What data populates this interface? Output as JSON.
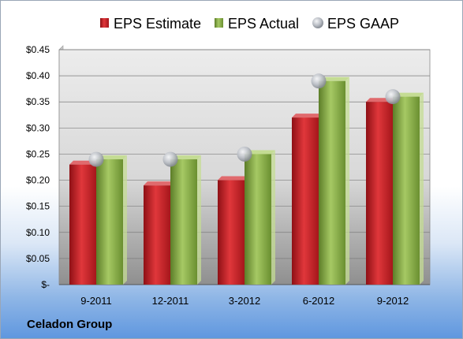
{
  "chart_data": {
    "type": "bar",
    "categories": [
      "9-2011",
      "12-2011",
      "3-2012",
      "6-2012",
      "9-2012"
    ],
    "series": [
      {
        "name": "EPS Estimate",
        "marker": "bar",
        "color": "#c8242a",
        "values": [
          0.23,
          0.19,
          0.2,
          0.32,
          0.35
        ]
      },
      {
        "name": "EPS Actual",
        "marker": "bar",
        "color": "#8cb24a",
        "values": [
          0.24,
          0.24,
          0.25,
          0.39,
          0.36
        ]
      },
      {
        "name": "EPS GAAP",
        "marker": "circle",
        "color": "#b8bcc4",
        "values": [
          0.24,
          0.24,
          0.25,
          0.39,
          0.36
        ]
      }
    ],
    "ylim": [
      0,
      0.45
    ],
    "yticks": [
      0,
      0.05,
      0.1,
      0.15,
      0.2,
      0.25,
      0.3,
      0.35,
      0.4,
      0.45
    ],
    "ytick_labels": [
      "$-",
      "$0.05",
      "$0.10",
      "$0.15",
      "$0.20",
      "$0.25",
      "$0.30",
      "$0.35",
      "$0.40",
      "$0.45"
    ],
    "grid": true,
    "legend_position": "top"
  },
  "company": "Celadon Group"
}
